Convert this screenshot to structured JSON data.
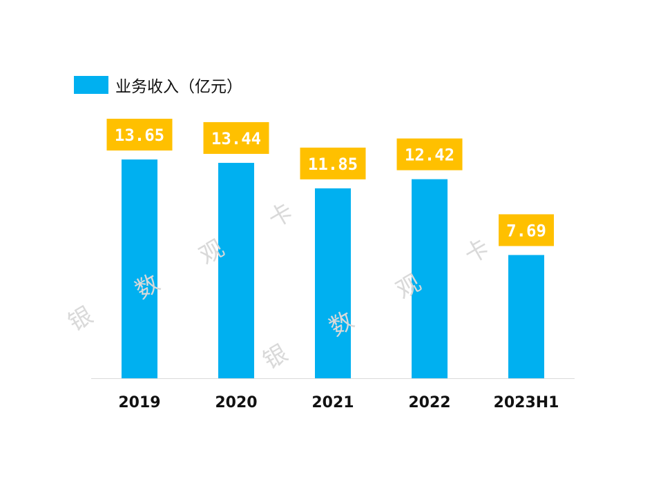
{
  "chart_data": {
    "type": "bar",
    "categories": [
      "2019",
      "2020",
      "2021",
      "2022",
      "2023H1"
    ],
    "series": [
      {
        "name": "业务收入（亿元）",
        "values": [
          13.65,
          13.44,
          11.85,
          12.42,
          7.69
        ]
      }
    ],
    "data_labels": [
      "13.65",
      "13.44",
      "11.85",
      "12.42",
      "7.69"
    ],
    "title": "",
    "xlabel": "",
    "ylabel": "",
    "ylim": [
      0,
      16
    ],
    "grid": false,
    "legend_position": "top-left",
    "colors": {
      "bar": "#00B0F0",
      "label_box": "#FFC000",
      "label_text": "#FFFFFF",
      "axis": "#D9D9D9"
    }
  },
  "watermark": [
    "银",
    "数",
    "观",
    "卡"
  ]
}
